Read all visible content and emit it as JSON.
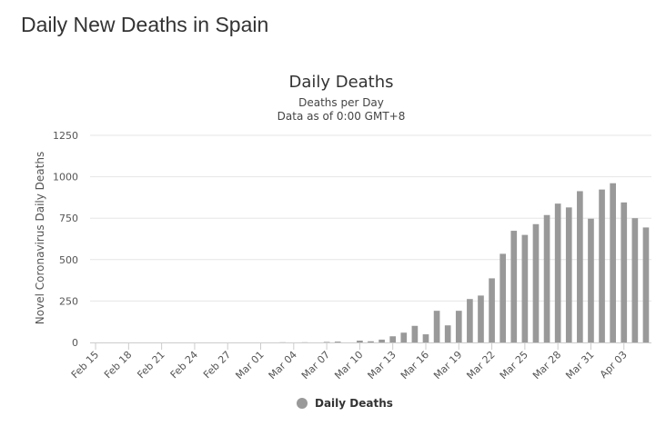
{
  "page": {
    "title": "Daily New Deaths in Spain"
  },
  "chart_data": {
    "type": "bar",
    "title": "Daily Deaths",
    "subtitle_lines": [
      "Deaths per Day",
      "Data as of 0:00 GMT+8"
    ],
    "ylabel": "Novel Coronavirus Daily Deaths",
    "xlabel": "",
    "ylim": [
      0,
      1250
    ],
    "yticks": [
      0,
      250,
      500,
      750,
      1000,
      1250
    ],
    "grid": true,
    "legend": "bottom",
    "bar_color": "#999999",
    "categories": [
      "Feb 15",
      "Feb 16",
      "Feb 17",
      "Feb 18",
      "Feb 19",
      "Feb 20",
      "Feb 21",
      "Feb 22",
      "Feb 23",
      "Feb 24",
      "Feb 25",
      "Feb 26",
      "Feb 27",
      "Feb 28",
      "Feb 29",
      "Mar 01",
      "Mar 02",
      "Mar 03",
      "Mar 04",
      "Mar 05",
      "Mar 06",
      "Mar 07",
      "Mar 08",
      "Mar 09",
      "Mar 10",
      "Mar 11",
      "Mar 12",
      "Mar 13",
      "Mar 14",
      "Mar 15",
      "Mar 16",
      "Mar 17",
      "Mar 18",
      "Mar 19",
      "Mar 20",
      "Mar 21",
      "Mar 22",
      "Mar 23",
      "Mar 24",
      "Mar 25",
      "Mar 26",
      "Mar 27",
      "Mar 28",
      "Mar 29",
      "Mar 30",
      "Mar 31",
      "Apr 01",
      "Apr 02",
      "Apr 03",
      "Apr 04",
      "Apr 05"
    ],
    "xtick_labels": [
      "Feb 15",
      "Feb 18",
      "Feb 21",
      "Feb 24",
      "Feb 27",
      "Mar 01",
      "Mar 04",
      "Mar 07",
      "Mar 10",
      "Mar 13",
      "Mar 16",
      "Mar 19",
      "Mar 22",
      "Mar 25",
      "Mar 28",
      "Mar 31",
      "Apr 03"
    ],
    "series": [
      {
        "name": "Daily Deaths",
        "values": [
          0,
          0,
          0,
          0,
          0,
          0,
          0,
          0,
          0,
          0,
          0,
          0,
          0,
          0,
          0,
          0,
          0,
          1,
          0,
          1,
          0,
          3,
          5,
          0,
          11,
          7,
          17,
          37,
          59,
          100,
          49,
          191,
          103,
          191,
          262,
          283,
          387,
          535,
          674,
          649,
          714,
          769,
          838,
          815,
          913,
          747,
          923,
          961,
          845,
          750,
          694
        ]
      }
    ]
  }
}
